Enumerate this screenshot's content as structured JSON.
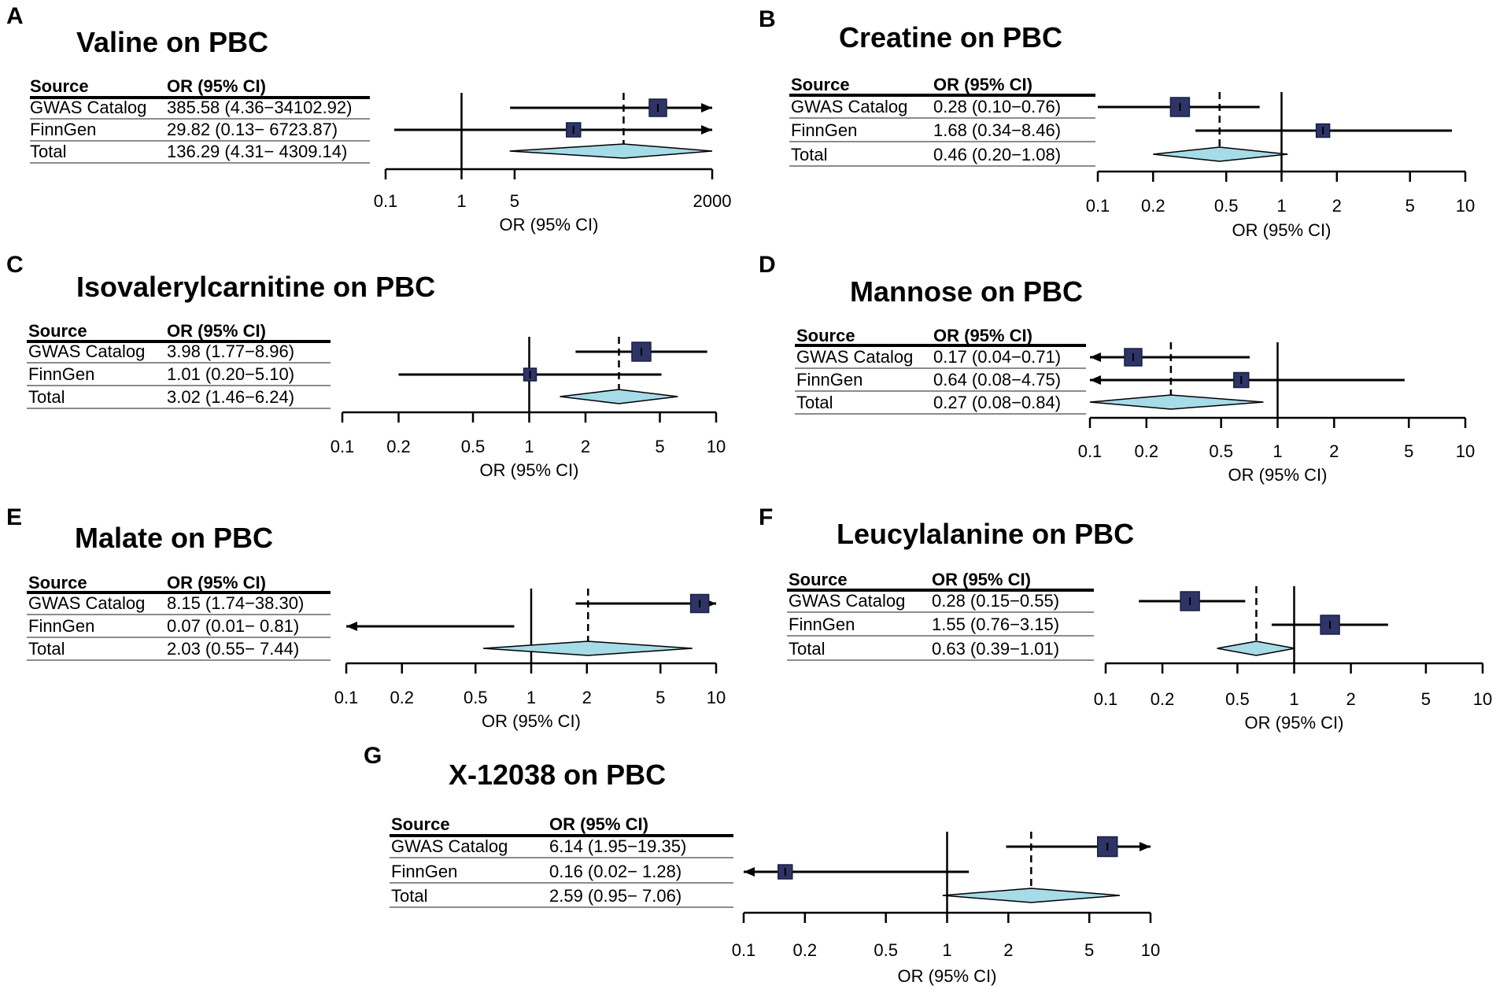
{
  "figure": {
    "colors": {
      "box": "#2e3566",
      "diamond": "#a6dbe8",
      "ink": "#000000",
      "rule": "#8c8c8c"
    }
  },
  "chart_data": [
    {
      "panel": "A",
      "type": "forest",
      "title": "Valine on PBC",
      "headers": {
        "source": "Source",
        "or": "OR (95% CI)"
      },
      "rows": [
        {
          "source": "GWAS Catalog",
          "label": "385.58 (4.36−34102.92)",
          "or": 385.58,
          "lo": 4.36,
          "hi": 34102.92,
          "weight": 0.6
        },
        {
          "source": "FinnGen",
          "label": "29.82 (0.13− 6723.87)",
          "or": 29.82,
          "lo": 0.13,
          "hi": 6723.87,
          "weight": 0.4
        },
        {
          "source": "Total",
          "label": "136.29 (4.31− 4309.14)",
          "or": 136.29,
          "lo": 4.31,
          "hi": 4309.14
        }
      ],
      "xticks": [
        0.1,
        1,
        5,
        2000
      ],
      "xtick_labels": [
        "0.1",
        "1",
        "5",
        "2000"
      ],
      "xlim": [
        0.1,
        2000
      ],
      "xlabel": "OR (95% CI)"
    },
    {
      "panel": "B",
      "type": "forest",
      "title": "Creatine on PBC",
      "headers": {
        "source": "Source",
        "or": "OR (95% CI)"
      },
      "rows": [
        {
          "source": "GWAS Catalog",
          "label": "0.28 (0.10−0.76)",
          "or": 0.28,
          "lo": 0.1,
          "hi": 0.76,
          "weight": 0.7
        },
        {
          "source": "FinnGen",
          "label": "1.68 (0.34−8.46)",
          "or": 1.68,
          "lo": 0.34,
          "hi": 8.46,
          "weight": 0.35
        },
        {
          "source": "Total",
          "label": "0.46 (0.20−1.08)",
          "or": 0.46,
          "lo": 0.2,
          "hi": 1.08
        }
      ],
      "xticks": [
        0.1,
        0.2,
        0.5,
        1,
        2,
        5,
        10
      ],
      "xtick_labels": [
        "0.1",
        "0.2",
        "0.5",
        "1",
        "2",
        "5",
        "10"
      ],
      "xlim": [
        0.1,
        10
      ],
      "xlabel": "OR (95% CI)"
    },
    {
      "panel": "C",
      "type": "forest",
      "title": "Isovalerylcarnitine on PBC",
      "headers": {
        "source": "Source",
        "or": "OR (95% CI)"
      },
      "rows": [
        {
          "source": "GWAS Catalog",
          "label": "3.98 (1.77−8.96)",
          "or": 3.98,
          "lo": 1.77,
          "hi": 8.96,
          "weight": 0.7
        },
        {
          "source": "FinnGen",
          "label": "1.01 (0.20−5.10)",
          "or": 1.01,
          "lo": 0.2,
          "hi": 5.1,
          "weight": 0.3
        },
        {
          "source": "Total",
          "label": "3.02 (1.46−6.24)",
          "or": 3.02,
          "lo": 1.46,
          "hi": 6.24
        }
      ],
      "xticks": [
        0.1,
        0.2,
        0.5,
        1,
        2,
        5,
        10
      ],
      "xtick_labels": [
        "0.1",
        "0.2",
        "0.5",
        "1",
        "2",
        "5",
        "10"
      ],
      "xlim": [
        0.1,
        10
      ],
      "xlabel": "OR (95% CI)"
    },
    {
      "panel": "D",
      "type": "forest",
      "title": "Mannose on PBC",
      "headers": {
        "source": "Source",
        "or": "OR (95% CI)"
      },
      "rows": [
        {
          "source": "GWAS Catalog",
          "label": "0.17 (0.04−0.71)",
          "or": 0.17,
          "lo": 0.04,
          "hi": 0.71,
          "weight": 0.6
        },
        {
          "source": "FinnGen",
          "label": "0.64 (0.08−4.75)",
          "or": 0.64,
          "lo": 0.08,
          "hi": 4.75,
          "weight": 0.45
        },
        {
          "source": "Total",
          "label": "0.27 (0.08−0.84)",
          "or": 0.27,
          "lo": 0.08,
          "hi": 0.84
        }
      ],
      "xticks": [
        0.1,
        0.2,
        0.5,
        1,
        2,
        5,
        10
      ],
      "xtick_labels": [
        "0.1",
        "0.2",
        "0.5",
        "1",
        "2",
        "5",
        "10"
      ],
      "xlim": [
        0.1,
        10
      ],
      "xlabel": "OR (95% CI)"
    },
    {
      "panel": "E",
      "type": "forest",
      "title": "Malate on PBC",
      "headers": {
        "source": "Source",
        "or": "OR (95% CI)"
      },
      "rows": [
        {
          "source": "GWAS Catalog",
          "label": "8.15 (1.74−38.30)",
          "or": 8.15,
          "lo": 1.74,
          "hi": 38.3,
          "weight": 0.65
        },
        {
          "source": "FinnGen",
          "label": "0.07 (0.01− 0.81)",
          "or": 0.07,
          "lo": 0.01,
          "hi": 0.81,
          "weight": 0.0
        },
        {
          "source": "Total",
          "label": "2.03 (0.55− 7.44)",
          "or": 2.03,
          "lo": 0.55,
          "hi": 7.44
        }
      ],
      "xticks": [
        0.1,
        0.2,
        0.5,
        1,
        2,
        5,
        10
      ],
      "xtick_labels": [
        "0.1",
        "0.2",
        "0.5",
        "1",
        "2",
        "5",
        "10"
      ],
      "xlim": [
        0.1,
        10
      ],
      "xlabel": "OR (95% CI)"
    },
    {
      "panel": "F",
      "type": "forest",
      "title": "Leucylalanine on PBC",
      "headers": {
        "source": "Source",
        "or": "OR (95% CI)"
      },
      "rows": [
        {
          "source": "GWAS Catalog",
          "label": "0.28 (0.15−0.55)",
          "or": 0.28,
          "lo": 0.15,
          "hi": 0.55,
          "weight": 0.7
        },
        {
          "source": "FinnGen",
          "label": "1.55 (0.76−3.15)",
          "or": 1.55,
          "lo": 0.76,
          "hi": 3.15,
          "weight": 0.7
        },
        {
          "source": "Total",
          "label": "0.63 (0.39−1.01)",
          "or": 0.63,
          "lo": 0.39,
          "hi": 1.01
        }
      ],
      "xticks": [
        0.1,
        0.2,
        0.5,
        1,
        2,
        5,
        10
      ],
      "xtick_labels": [
        "0.1",
        "0.2",
        "0.5",
        "1",
        "2",
        "5",
        "10"
      ],
      "xlim": [
        0.1,
        10
      ],
      "xlabel": "OR (95% CI)"
    },
    {
      "panel": "G",
      "type": "forest",
      "title": "X-12038 on PBC",
      "headers": {
        "source": "Source",
        "or": "OR (95% CI)"
      },
      "rows": [
        {
          "source": "GWAS Catalog",
          "label": "6.14 (1.95−19.35)",
          "or": 6.14,
          "lo": 1.95,
          "hi": 19.35,
          "weight": 0.75
        },
        {
          "source": "FinnGen",
          "label": "0.16 (0.02− 1.28)",
          "or": 0.16,
          "lo": 0.02,
          "hi": 1.28,
          "weight": 0.4
        },
        {
          "source": "Total",
          "label": "2.59 (0.95− 7.06)",
          "or": 2.59,
          "lo": 0.95,
          "hi": 7.06
        }
      ],
      "xticks": [
        0.1,
        0.2,
        0.5,
        1,
        2,
        5,
        10
      ],
      "xtick_labels": [
        "0.1",
        "0.2",
        "0.5",
        "1",
        "2",
        "5",
        "10"
      ],
      "xlim": [
        0.1,
        10
      ],
      "xlabel": "OR (95% CI)"
    }
  ]
}
